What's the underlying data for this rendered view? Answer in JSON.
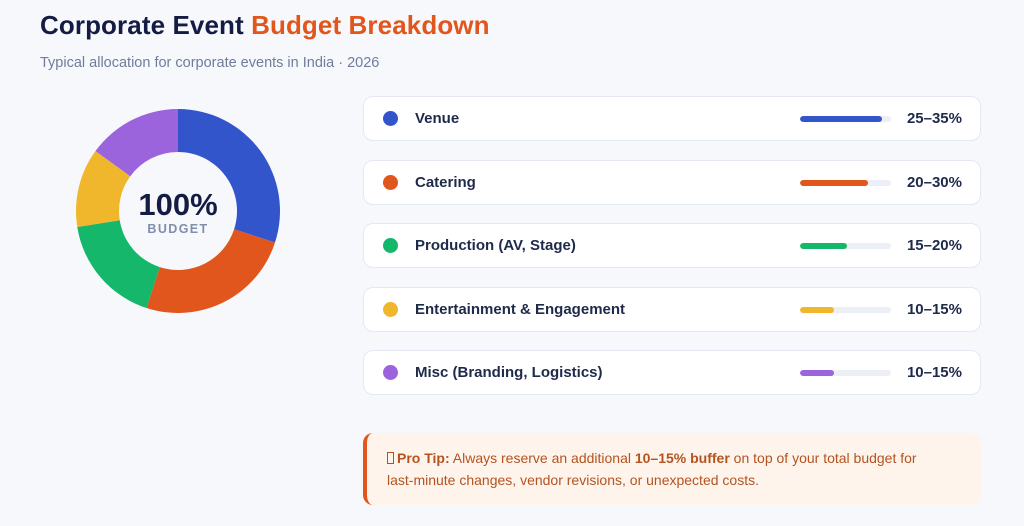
{
  "header": {
    "title_part1": "Corporate Event",
    "title_part2": "Budget Breakdown",
    "subtitle": "Typical allocation for corporate events in India · 2026"
  },
  "colors": {
    "accent": "#e0561c",
    "title": "#141c44"
  },
  "donut": {
    "center_value": "100%",
    "center_label": "BUDGET"
  },
  "chart_data": {
    "type": "pie",
    "categories": [
      "Venue",
      "Catering",
      "Production (AV, Stage)",
      "Entertainment & Engagement",
      "Misc (Branding, Logistics)"
    ],
    "values": [
      30,
      25,
      17.5,
      12.5,
      15
    ],
    "ranges": [
      "25–35%",
      "20–30%",
      "15–20%",
      "10–15%",
      "10–15%"
    ],
    "bar_fill_pct": [
      90,
      75,
      52,
      37,
      37
    ],
    "colors": [
      "#3355cc",
      "#e0561c",
      "#15b86a",
      "#f0b62c",
      "#9b63dc"
    ]
  },
  "list": {
    "items": [
      {
        "label": "Venue",
        "range": "25–35%"
      },
      {
        "label": "Catering",
        "range": "20–30%"
      },
      {
        "label": "Production (AV, Stage)",
        "range": "15–20%"
      },
      {
        "label": "Entertainment & Engagement",
        "range": "10–15%"
      },
      {
        "label": "Misc (Branding, Logistics)",
        "range": "10–15%"
      }
    ]
  },
  "tip": {
    "icon": "lightbulb-icon",
    "label": "Pro Tip:",
    "text_before": " Always reserve an additional ",
    "highlight": "10–15% buffer",
    "text_after": " on top of your total budget for last-minute changes, vendor revisions, or unexpected costs."
  }
}
